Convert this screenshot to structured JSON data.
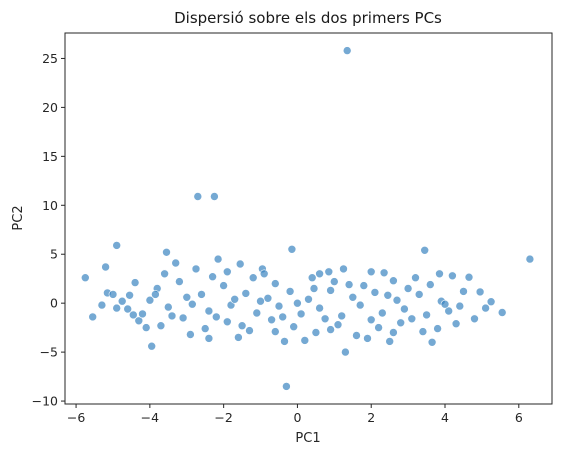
{
  "chart_data": {
    "type": "scatter",
    "title": "Dispersió sobre els dos primers PCs",
    "xlabel": "PC1",
    "ylabel": "PC2",
    "xlim": [
      -6.3,
      6.9
    ],
    "ylim": [
      -10.3,
      27.6
    ],
    "xticks": [
      -6,
      -4,
      -2,
      0,
      2,
      4,
      6
    ],
    "yticks": [
      -10,
      -5,
      0,
      5,
      10,
      15,
      20,
      25
    ],
    "grid": false,
    "legend": "none",
    "color": "#3a84c0",
    "points": [
      [
        1.35,
        25.8
      ],
      [
        -2.7,
        10.9
      ],
      [
        -2.25,
        10.9
      ],
      [
        6.3,
        4.5
      ],
      [
        -4.9,
        5.9
      ],
      [
        -3.55,
        5.2
      ],
      [
        3.45,
        5.4
      ],
      [
        -0.15,
        5.5
      ],
      [
        -5.75,
        2.6
      ],
      [
        -5.55,
        -1.4
      ],
      [
        -3.95,
        -4.4
      ],
      [
        -0.3,
        -8.5
      ],
      [
        1.3,
        -5.0
      ],
      [
        3.65,
        -4.0
      ],
      [
        -2.4,
        -3.6
      ],
      [
        -0.35,
        -3.9
      ],
      [
        -5.2,
        3.7
      ],
      [
        -3.3,
        4.1
      ],
      [
        -2.75,
        3.5
      ],
      [
        -2.15,
        4.5
      ],
      [
        5.55,
        -0.95
      ],
      [
        5.25,
        0.15
      ],
      [
        4.95,
        1.15
      ],
      [
        4.65,
        2.65
      ],
      [
        -5.15,
        1.05
      ],
      [
        -4.75,
        0.2
      ],
      [
        -4.45,
        -1.2
      ],
      [
        -4.1,
        -2.5
      ],
      [
        -1.55,
        4.0
      ],
      [
        -0.95,
        3.5
      ],
      [
        0.85,
        3.2
      ],
      [
        1.25,
        3.5
      ],
      [
        2.35,
        3.1
      ],
      [
        3.85,
        3.0
      ],
      [
        4.2,
        2.8
      ],
      [
        -1.9,
        3.2
      ],
      [
        -1.2,
        2.6
      ],
      [
        -0.6,
        2.0
      ],
      [
        0.4,
        2.6
      ],
      [
        1.0,
        2.2
      ],
      [
        1.8,
        1.8
      ],
      [
        2.6,
        2.3
      ],
      [
        3.0,
        1.5
      ],
      [
        -5.3,
        -0.2
      ],
      [
        -3.8,
        1.5
      ],
      [
        -3.2,
        2.2
      ],
      [
        -2.6,
        0.9
      ],
      [
        -2.0,
        1.8
      ],
      [
        -1.4,
        1.0
      ],
      [
        -0.8,
        0.5
      ],
      [
        -0.2,
        1.2
      ],
      [
        0.3,
        0.4
      ],
      [
        0.9,
        1.3
      ],
      [
        1.5,
        0.6
      ],
      [
        2.1,
        1.1
      ],
      [
        2.7,
        0.3
      ],
      [
        3.3,
        0.9
      ],
      [
        3.9,
        0.2
      ],
      [
        4.4,
        -0.3
      ],
      [
        -4.6,
        -0.6
      ],
      [
        -4.0,
        0.3
      ],
      [
        -3.5,
        -0.4
      ],
      [
        -3.0,
        0.6
      ],
      [
        -2.4,
        -0.8
      ],
      [
        -1.8,
        -0.2
      ],
      [
        -1.1,
        -1.0
      ],
      [
        -0.5,
        -0.3
      ],
      [
        0.1,
        -1.1
      ],
      [
        0.6,
        -0.5
      ],
      [
        1.2,
        -1.3
      ],
      [
        1.7,
        -0.2
      ],
      [
        2.3,
        -1.0
      ],
      [
        2.9,
        -0.6
      ],
      [
        3.5,
        -1.2
      ],
      [
        4.1,
        -0.8
      ],
      [
        -4.3,
        -1.8
      ],
      [
        -3.7,
        -2.3
      ],
      [
        -3.1,
        -1.5
      ],
      [
        -2.5,
        -2.6
      ],
      [
        -1.9,
        -1.9
      ],
      [
        -1.3,
        -2.8
      ],
      [
        -0.7,
        -1.7
      ],
      [
        -0.1,
        -2.4
      ],
      [
        0.5,
        -3.0
      ],
      [
        1.1,
        -2.2
      ],
      [
        1.6,
        -3.3
      ],
      [
        2.2,
        -2.5
      ],
      [
        2.8,
        -2.0
      ],
      [
        3.4,
        -2.9
      ],
      [
        4.3,
        -2.1
      ],
      [
        -2.9,
        -3.2
      ],
      [
        -1.6,
        -3.5
      ],
      [
        0.2,
        -3.8
      ],
      [
        1.9,
        -3.6
      ],
      [
        2.5,
        -3.9
      ],
      [
        -5.0,
        0.9
      ],
      [
        -4.9,
        -0.5
      ],
      [
        -4.55,
        0.8
      ],
      [
        -4.2,
        -1.1
      ],
      [
        -3.85,
        0.9
      ],
      [
        -3.4,
        -1.3
      ],
      [
        -2.85,
        -0.1
      ],
      [
        -2.2,
        -1.4
      ],
      [
        -1.7,
        0.4
      ],
      [
        -1.0,
        0.2
      ],
      [
        -0.4,
        -1.4
      ],
      [
        0.0,
        0.0
      ],
      [
        0.45,
        1.5
      ],
      [
        0.75,
        -1.6
      ],
      [
        1.4,
        1.9
      ],
      [
        2.0,
        -1.7
      ],
      [
        2.45,
        0.8
      ],
      [
        3.1,
        -1.6
      ],
      [
        3.6,
        1.9
      ],
      [
        4.0,
        -0.1
      ],
      [
        4.5,
        1.2
      ],
      [
        4.8,
        -1.6
      ],
      [
        5.1,
        -0.5
      ],
      [
        -3.6,
        3.0
      ],
      [
        -2.3,
        2.7
      ],
      [
        -0.9,
        3.0
      ],
      [
        0.6,
        3.0
      ],
      [
        2.0,
        3.2
      ],
      [
        3.2,
        2.6
      ],
      [
        -4.4,
        2.1
      ],
      [
        -1.5,
        -2.3
      ],
      [
        -0.6,
        -2.9
      ],
      [
        0.9,
        -2.7
      ],
      [
        2.6,
        -3.0
      ],
      [
        3.8,
        -2.6
      ]
    ]
  }
}
